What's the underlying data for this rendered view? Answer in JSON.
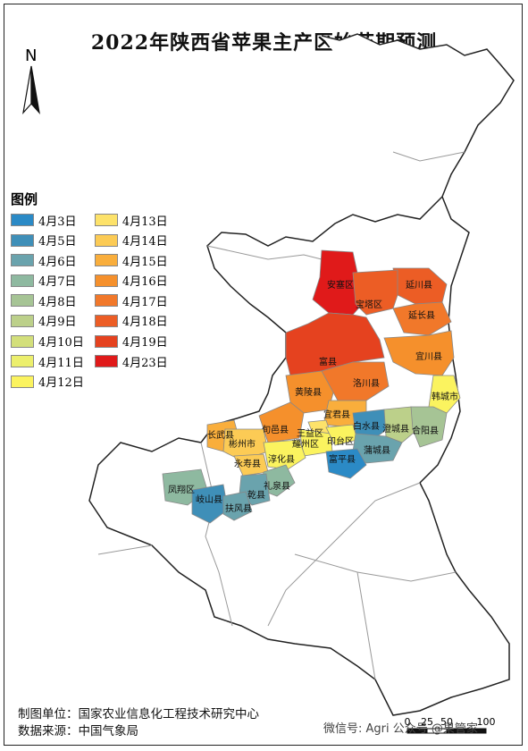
{
  "title": "2022年陕西省苹果主产区始花期预测",
  "north_label": "N",
  "legend": {
    "title": "图例",
    "col1": [
      {
        "label": "4月3日",
        "color": "#2b8ac6"
      },
      {
        "label": "4月5日",
        "color": "#3f8fb8"
      },
      {
        "label": "4月6日",
        "color": "#6aa3ad"
      },
      {
        "label": "4月7日",
        "color": "#8eb9a0"
      },
      {
        "label": "4月8日",
        "color": "#a6c495"
      },
      {
        "label": "4月9日",
        "color": "#bcd08a"
      },
      {
        "label": "4月10日",
        "color": "#d3df7b"
      },
      {
        "label": "4月11日",
        "color": "#ecef6d"
      },
      {
        "label": "4月12日",
        "color": "#fbf35f"
      }
    ],
    "col2": [
      {
        "label": "4月13日",
        "color": "#fde26a"
      },
      {
        "label": "4月14日",
        "color": "#fccb55"
      },
      {
        "label": "4月15日",
        "color": "#f9ae3c"
      },
      {
        "label": "4月16日",
        "color": "#f5902c"
      },
      {
        "label": "4月17日",
        "color": "#f1782a"
      },
      {
        "label": "4月18日",
        "color": "#ec5d25"
      },
      {
        "label": "4月19日",
        "color": "#e5421f"
      },
      {
        "label": "4月23日",
        "color": "#e01a1a"
      }
    ]
  },
  "counties": [
    {
      "name": "安塞区",
      "color": "#e01a1a"
    },
    {
      "name": "延川县",
      "color": "#ec5d25"
    },
    {
      "name": "宝塔区",
      "color": "#ec5d25"
    },
    {
      "name": "延长县",
      "color": "#f1782a"
    },
    {
      "name": "宜川县",
      "color": "#f5902c"
    },
    {
      "name": "富县",
      "color": "#e5421f"
    },
    {
      "name": "黄陵县",
      "color": "#f5902c"
    },
    {
      "name": "洛川县",
      "color": "#f1782a"
    },
    {
      "name": "韩城市",
      "color": "#fbf35f"
    },
    {
      "name": "宜君县",
      "color": "#f9ae3c"
    },
    {
      "name": "白水县",
      "color": "#3f8fb8"
    },
    {
      "name": "澄城县",
      "color": "#bcd08a"
    },
    {
      "name": "合阳县",
      "color": "#a6c495"
    },
    {
      "name": "长武县",
      "color": "#f9ae3c"
    },
    {
      "name": "旬邑县",
      "color": "#f5902c"
    },
    {
      "name": "彬州市",
      "color": "#fccb55"
    },
    {
      "name": "王益区",
      "color": "#fde26a"
    },
    {
      "name": "耀州区",
      "color": "#fbf35f"
    },
    {
      "name": "印台区",
      "color": "#fbf35f"
    },
    {
      "name": "蒲城县",
      "color": "#6aa3ad"
    },
    {
      "name": "永寿县",
      "color": "#fccb55"
    },
    {
      "name": "淳化县",
      "color": "#fbf35f"
    },
    {
      "name": "富平县",
      "color": "#2b8ac6"
    },
    {
      "name": "凤翔区",
      "color": "#8eb9a0"
    },
    {
      "name": "礼泉县",
      "color": "#8eb9a0"
    },
    {
      "name": "乾县",
      "color": "#6aa3ad"
    },
    {
      "name": "岐山县",
      "color": "#3f8fb8"
    },
    {
      "name": "扶风县",
      "color": "#6aa3ad"
    }
  ],
  "footer": {
    "unit_label": "制图单位：",
    "unit": "国家农业信息化工程技术研究中心",
    "source_label": "数据来源：",
    "source": "中国气象局"
  },
  "watermark": "微信号: Agri  公众号 @果管家",
  "scale": {
    "ticks": [
      "0",
      "25",
      "50",
      "100"
    ]
  }
}
